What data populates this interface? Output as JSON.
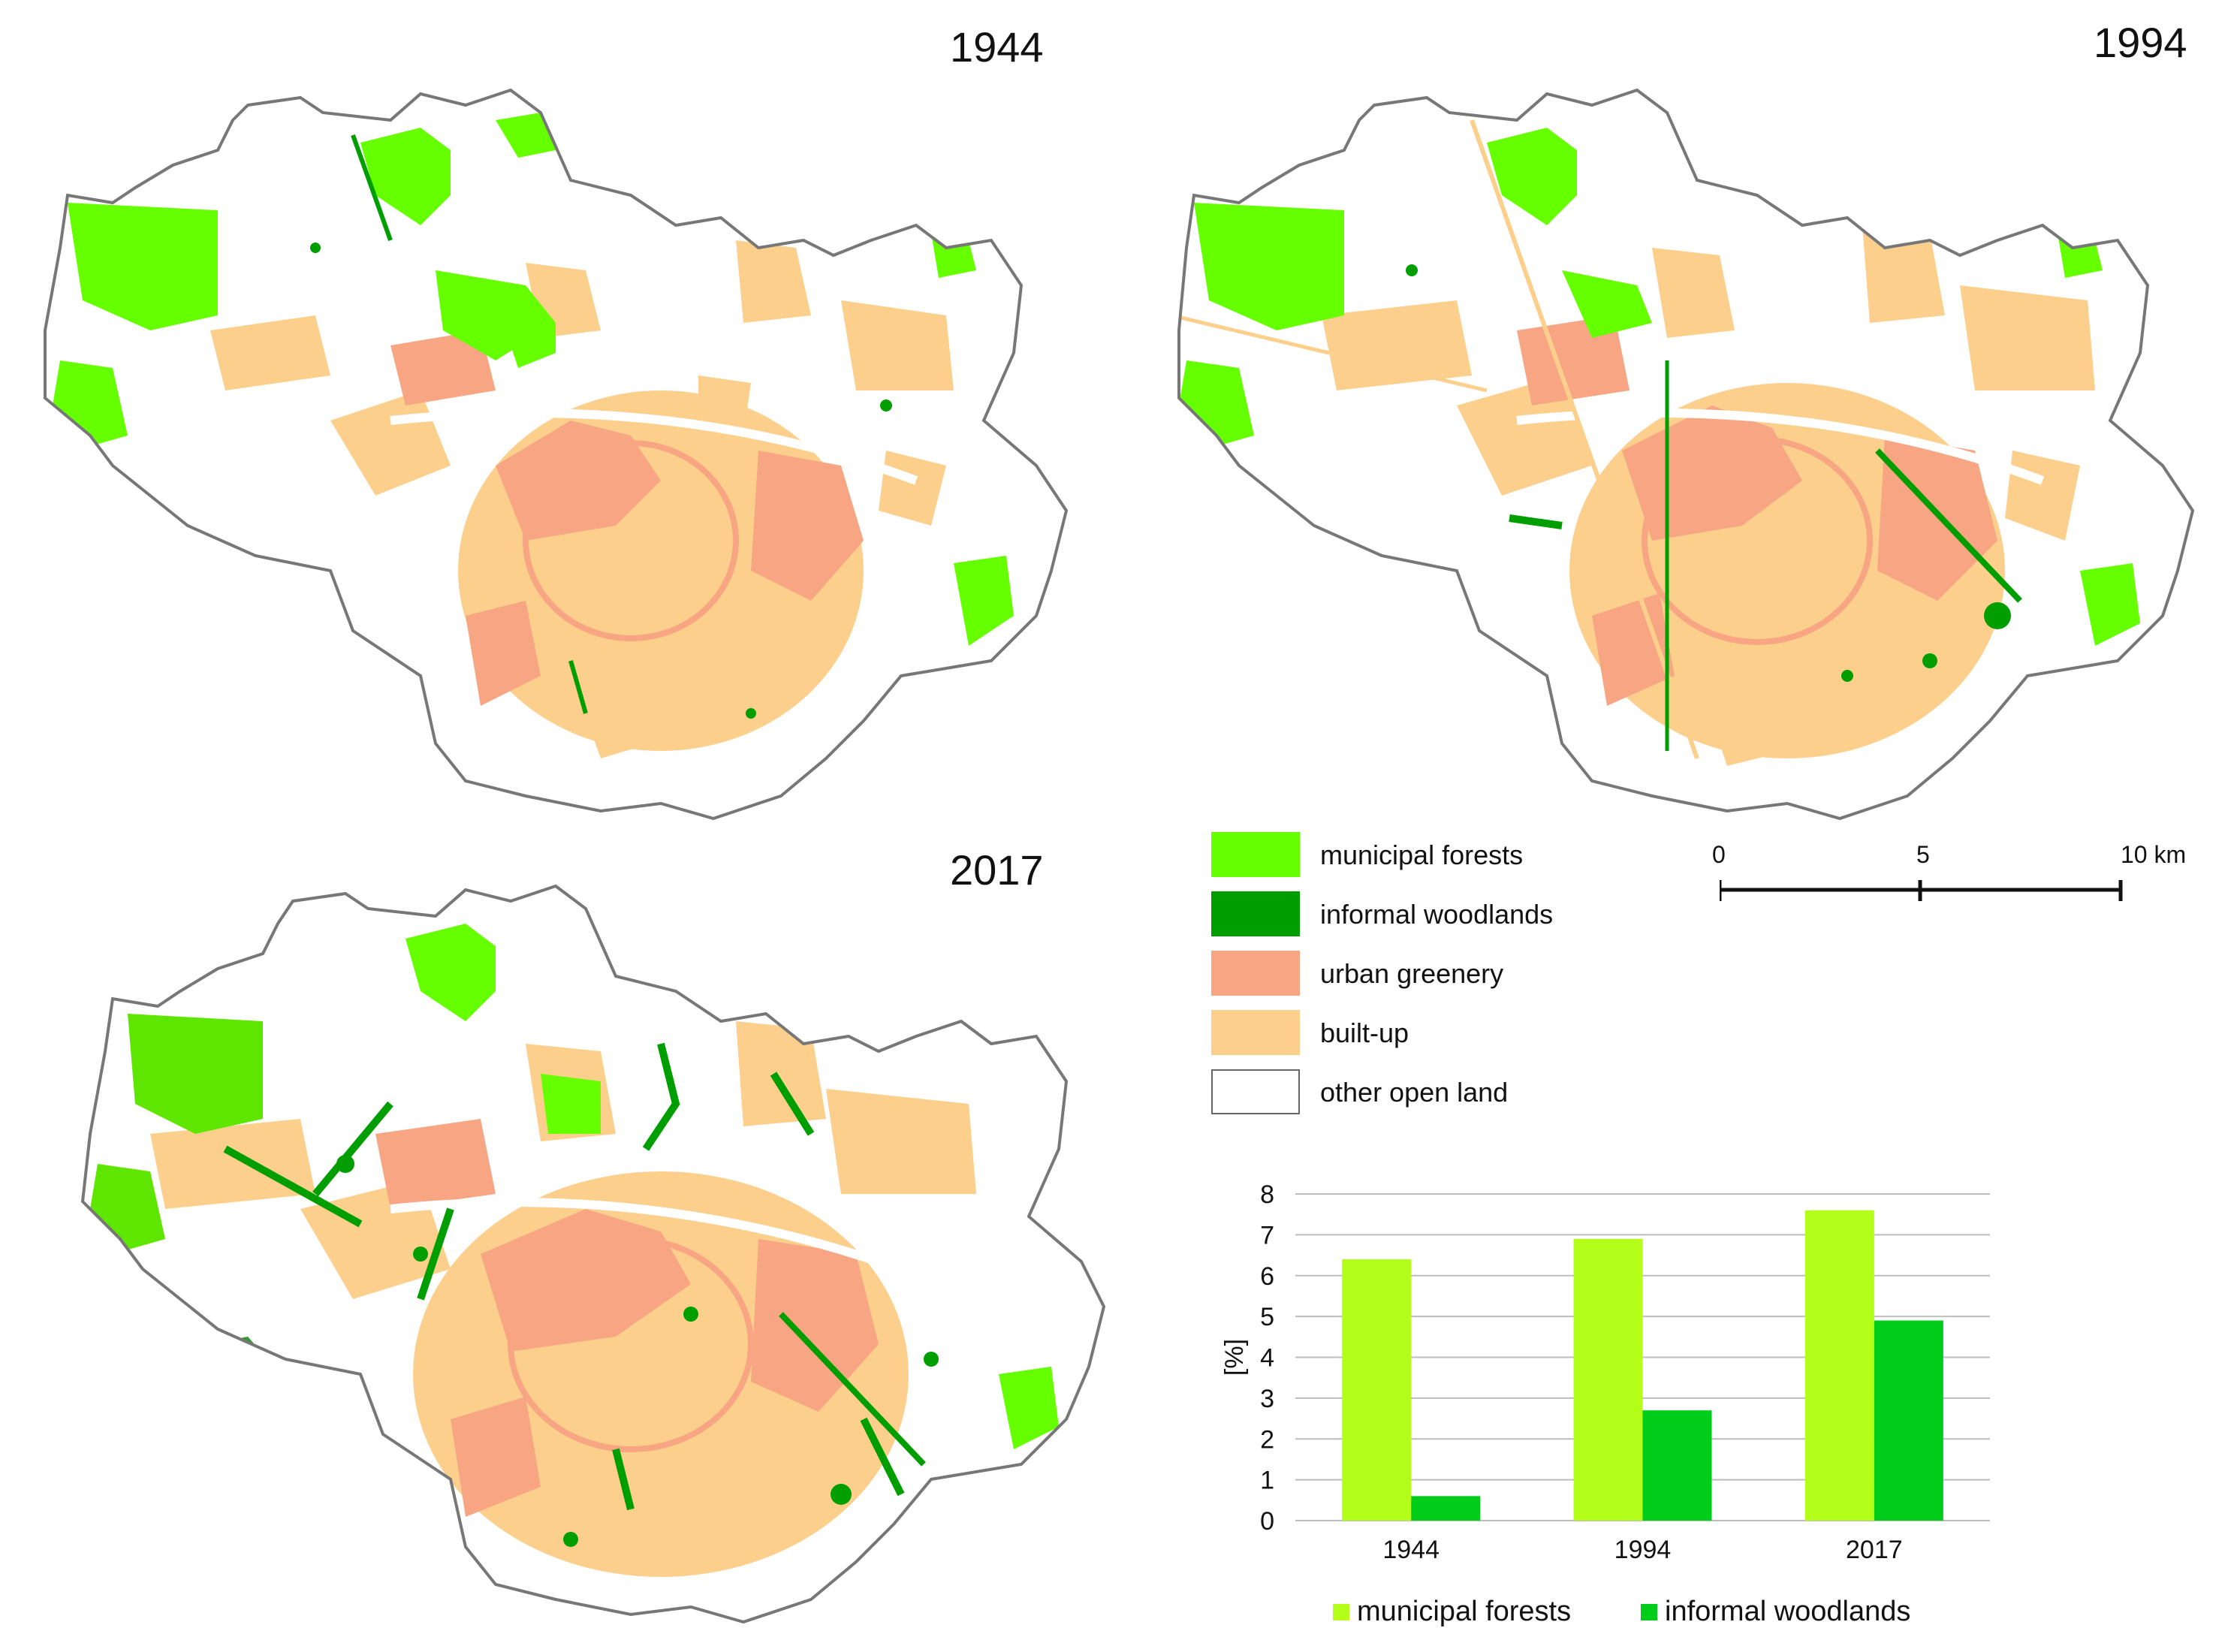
{
  "maps": [
    {
      "year": "1944"
    },
    {
      "year": "1994"
    },
    {
      "year": "2017"
    }
  ],
  "legend": {
    "items": [
      {
        "label": "municipal forests",
        "color": "#66ff00"
      },
      {
        "label": "informal woodlands",
        "color": "#009e00"
      },
      {
        "label": "urban greenery",
        "color": "#f7a582"
      },
      {
        "label": "built-up",
        "color": "#fcd08c"
      },
      {
        "label": "other open land",
        "color": "#ffffff"
      }
    ]
  },
  "scalebar": {
    "labels": [
      "0",
      "5",
      "10 km"
    ]
  },
  "chart_data": {
    "type": "bar",
    "categories": [
      "1944",
      "1994",
      "2017"
    ],
    "series": [
      {
        "name": "municipal forests",
        "values": [
          6.4,
          6.9,
          7.6
        ],
        "color": "#b3ff1a"
      },
      {
        "name": "informal woodlands",
        "values": [
          0.6,
          2.7,
          4.9
        ],
        "color": "#00cc1a"
      }
    ],
    "ylabel": "[%]",
    "ylim": [
      0,
      8
    ],
    "yticks": [
      "0",
      "1",
      "2",
      "3",
      "4",
      "5",
      "6",
      "7",
      "8"
    ],
    "grid": true,
    "legend_position": "bottom"
  }
}
